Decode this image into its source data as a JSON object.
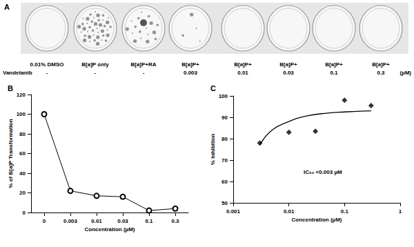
{
  "panel_a": {
    "label": "A",
    "plates": [
      {
        "label": "0.01% DMSO",
        "vandetanib": "-"
      },
      {
        "label": "B[a]P only",
        "vandetanib": "-"
      },
      {
        "label": "B[a]P+RA",
        "vandetanib": "-"
      },
      {
        "label": "B[a]P+",
        "vandetanib": 0.003
      },
      {
        "label": "B[a]P+",
        "vandetanib": 0.01
      },
      {
        "label": "B[a]P+",
        "vandetanib": 0.03
      },
      {
        "label": "B[a]P+",
        "vandetanib": 0.1
      },
      {
        "label": "B[a]P+",
        "vandetanib": 0.3
      }
    ],
    "row_label": "Vandetanib",
    "unit": "(µM)"
  },
  "chart_data": [
    {
      "type": "line",
      "title": "B",
      "x_label": "Concentration (µM)",
      "y_label": "% of B[a]P Transformation",
      "categories": [
        "0",
        "0.003",
        "0.01",
        "0.03",
        "0.1",
        "0.3"
      ],
      "values": [
        100,
        22,
        17,
        16,
        2,
        4
      ],
      "color": "#000000",
      "marker": "circle",
      "ylim": [
        0,
        120
      ],
      "yticks": [
        0,
        20,
        40,
        60,
        80,
        100,
        120
      ],
      "grid": false
    },
    {
      "type": "scatter",
      "title": "C",
      "x_label": "Concentration (µM)",
      "y_label": "% Inhibition",
      "annotations": [
        "IC₅₀ <0.003 µM"
      ],
      "log": "x",
      "series": [
        {
          "type": "scatter",
          "marker": "diamond",
          "color": "#000000",
          "x": [
            0.003,
            0.01,
            0.03,
            0.1,
            0.3
          ],
          "values": [
            78,
            83,
            83.5,
            98,
            95.5
          ]
        },
        {
          "type": "line",
          "color": "#000000",
          "x": [
            0.003,
            0.005,
            0.01,
            0.02,
            0.05,
            0.1,
            0.3
          ],
          "values": [
            77,
            84,
            88,
            90.5,
            92,
            92.5,
            93
          ]
        }
      ],
      "xlim": [
        0.001,
        1
      ],
      "xticks": [
        0.001,
        0.01,
        0.1,
        1
      ],
      "ylim": [
        50,
        100
      ],
      "yticks": [
        50,
        60,
        70,
        80,
        90,
        100
      ],
      "grid": false
    }
  ]
}
